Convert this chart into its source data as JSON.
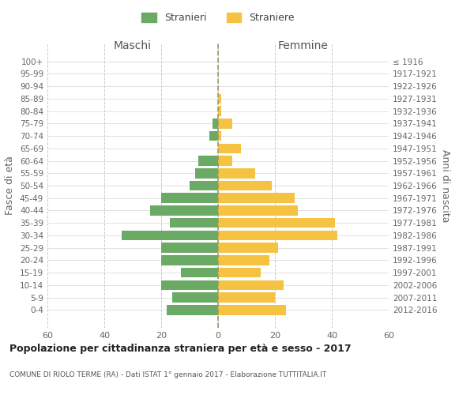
{
  "age_groups": [
    "100+",
    "95-99",
    "90-94",
    "85-89",
    "80-84",
    "75-79",
    "70-74",
    "65-69",
    "60-64",
    "55-59",
    "50-54",
    "45-49",
    "40-44",
    "35-39",
    "30-34",
    "25-29",
    "20-24",
    "15-19",
    "10-14",
    "5-9",
    "0-4"
  ],
  "birth_years": [
    "≤ 1916",
    "1917-1921",
    "1922-1926",
    "1927-1931",
    "1932-1936",
    "1937-1941",
    "1942-1946",
    "1947-1951",
    "1952-1956",
    "1957-1961",
    "1962-1966",
    "1967-1971",
    "1972-1976",
    "1977-1981",
    "1982-1986",
    "1987-1991",
    "1992-1996",
    "1997-2001",
    "2002-2006",
    "2007-2011",
    "2012-2016"
  ],
  "maschi": [
    0,
    0,
    0,
    0,
    0,
    2,
    3,
    0,
    7,
    8,
    10,
    20,
    24,
    17,
    34,
    20,
    20,
    13,
    20,
    16,
    18
  ],
  "femmine": [
    0,
    0,
    0,
    1,
    1,
    5,
    1,
    8,
    5,
    13,
    19,
    27,
    28,
    41,
    42,
    21,
    18,
    15,
    23,
    20,
    24
  ],
  "male_color": "#6aaa64",
  "female_color": "#f5c242",
  "title": "Popolazione per cittadinanza straniera per età e sesso - 2017",
  "subtitle": "COMUNE DI RIOLO TERME (RA) - Dati ISTAT 1° gennaio 2017 - Elaborazione TUTTITALIA.IT",
  "left_header": "Maschi",
  "right_header": "Femmine",
  "ylabel": "Fasce di età",
  "right_ylabel": "Anni di nascita",
  "legend_male": "Stranieri",
  "legend_female": "Straniere",
  "xlim": 60,
  "background_color": "#ffffff",
  "grid_color": "#cccccc",
  "bar_height": 0.8,
  "dashed_line_color": "#999966"
}
